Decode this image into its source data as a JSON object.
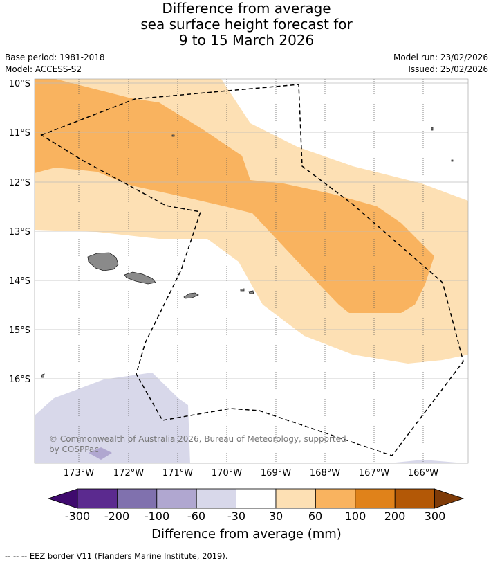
{
  "header": {
    "title_line1": "Difference from average",
    "title_line2": "sea surface height forecast for",
    "title_line3": "9 to 15 March 2026",
    "base_period": "Base period: 1981-2018",
    "model": "Model: ACCESS-S2",
    "model_run": "Model run: 23/02/2026",
    "issued": "Issued: 25/02/2026"
  },
  "map": {
    "lat_labels": [
      "10°S",
      "11°S",
      "12°S",
      "13°S",
      "14°S",
      "15°S",
      "16°S"
    ],
    "lon_labels": [
      "173°W",
      "172°W",
      "171°W",
      "170°W",
      "169°W",
      "168°W",
      "167°W",
      "166°W"
    ],
    "copyright_line1": "© Commonwealth of Australia 2026, Bureau of Meteorology, supported",
    "copyright_line2": "by COSPPac",
    "colors": {
      "range_30_60": "#fde0b4",
      "range_60_100": "#f9b35f",
      "range_neg30_neg60": "#d8d8ea",
      "land": "#8a8a8a"
    }
  },
  "colorbar": {
    "tick_labels": [
      "-300",
      "-200",
      "-100",
      "-60",
      "-30",
      "30",
      "60",
      "100",
      "200",
      "300"
    ],
    "colors": [
      "#3f0a6e",
      "#5b2a8f",
      "#8071ae",
      "#b0a7d0",
      "#d8d8ea",
      "#ffffff",
      "#fde0b4",
      "#f9b35f",
      "#e0821a",
      "#b35806",
      "#7f3b08"
    ],
    "title": "Difference from average (mm)"
  },
  "footer": {
    "legend_text": "--  --  -- EEZ border V11 (Flanders Marine Institute, 2019)."
  }
}
